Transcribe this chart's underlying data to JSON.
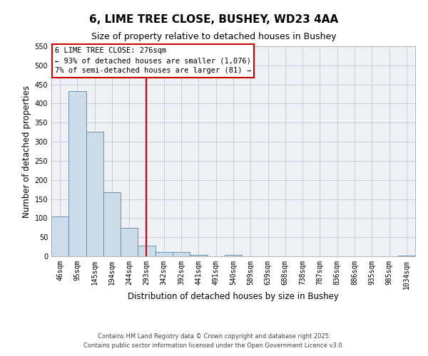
{
  "title": "6, LIME TREE CLOSE, BUSHEY, WD23 4AA",
  "subtitle": "Size of property relative to detached houses in Bushey",
  "xlabel": "Distribution of detached houses by size in Bushey",
  "ylabel": "Number of detached properties",
  "bin_labels": [
    "46sqm",
    "95sqm",
    "145sqm",
    "194sqm",
    "244sqm",
    "293sqm",
    "342sqm",
    "392sqm",
    "441sqm",
    "491sqm",
    "540sqm",
    "589sqm",
    "639sqm",
    "688sqm",
    "738sqm",
    "787sqm",
    "836sqm",
    "886sqm",
    "935sqm",
    "985sqm",
    "1034sqm"
  ],
  "bin_values": [
    105,
    432,
    326,
    167,
    75,
    28,
    12,
    12,
    3,
    0,
    4,
    0,
    0,
    0,
    0,
    0,
    0,
    0,
    0,
    0,
    2
  ],
  "bar_color": "#ccdce8",
  "bar_edge_color": "#5588aa",
  "annotation_line1": "6 LIME TREE CLOSE: 276sqm",
  "annotation_line2": "← 93% of detached houses are smaller (1,076)",
  "annotation_line3": "7% of semi-detached houses are larger (81) →",
  "vline_color": "#cc0000",
  "vline_x": 4.98,
  "ylim": [
    0,
    550
  ],
  "yticks": [
    0,
    50,
    100,
    150,
    200,
    250,
    300,
    350,
    400,
    450,
    500,
    550
  ],
  "annotation_box_color": "#ffffff",
  "annotation_box_edge_color": "#cc0000",
  "footer1": "Contains HM Land Registry data © Crown copyright and database right 2025.",
  "footer2": "Contains public sector information licensed under the Open Government Licence v3.0.",
  "background_color": "#eef2f6",
  "grid_color": "#c5cdd6",
  "title_fontsize": 11,
  "subtitle_fontsize": 9,
  "axis_label_fontsize": 8.5,
  "tick_fontsize": 7,
  "annotation_fontsize": 7.5,
  "footer_fontsize": 6
}
